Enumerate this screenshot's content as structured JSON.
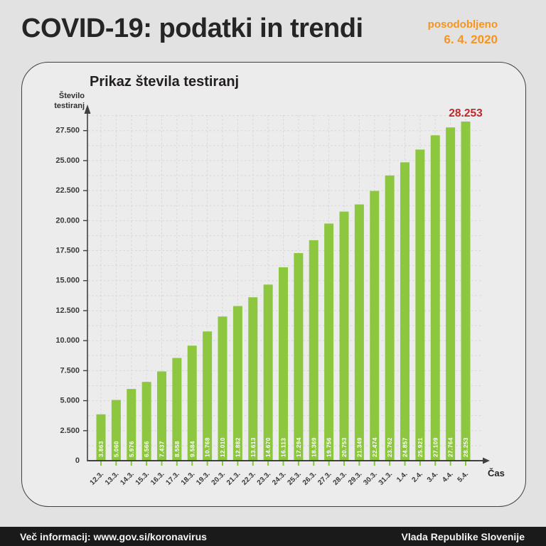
{
  "header": {
    "title": "COVID-19: podatki in trendi",
    "updated_label": "posodobljeno",
    "updated_date": "6. 4. 2020",
    "accent_color": "#f7941d"
  },
  "chart_data": {
    "type": "bar",
    "title": "Prikaz števila testiranj",
    "ylabel_lines": [
      "Število",
      "testiranj"
    ],
    "xlabel": "Čas",
    "categories": [
      "12.3.",
      "13.3.",
      "14.3.",
      "15.3.",
      "16.3.",
      "17.3.",
      "18.3.",
      "19.3.",
      "20.3.",
      "21.3.",
      "22.3.",
      "23.3.",
      "24.3.",
      "25.3.",
      "26.3.",
      "27.3.",
      "28.3.",
      "29.3.",
      "30.3.",
      "31.3.",
      "1.4.",
      "2.4.",
      "3.4.",
      "4.4.",
      "5.4."
    ],
    "values": [
      3863,
      5060,
      5976,
      6566,
      7437,
      8558,
      9584,
      10768,
      12010,
      12882,
      13613,
      14670,
      16113,
      17294,
      18369,
      19756,
      20753,
      21349,
      22474,
      23762,
      24857,
      25921,
      27109,
      27764,
      28253
    ],
    "value_labels": [
      "3.863",
      "5.060",
      "5.976",
      "6.566",
      "7.437",
      "8.558",
      "9.584",
      "10.768",
      "12.010",
      "12.882",
      "13.613",
      "14.670",
      "16.113",
      "17.294",
      "18.369",
      "19.756",
      "20.753",
      "21.349",
      "22.474",
      "23.762",
      "24.857",
      "25.921",
      "27.109",
      "27.764",
      "28.253"
    ],
    "peak_label": "28.253",
    "y_tick_values": [
      0,
      2500,
      5000,
      7500,
      10000,
      12500,
      15000,
      17500,
      20000,
      22500,
      25000,
      27500
    ],
    "y_tick_labels": [
      "0",
      "2.500",
      "5.000",
      "7.500",
      "10.000",
      "12.500",
      "15.000",
      "17.500",
      "20.000",
      "22.500",
      "25.000",
      "27.500"
    ],
    "ylim": [
      0,
      29500
    ],
    "grid": "dashed",
    "legend": "none",
    "colors": {
      "bar": "#8dc63f",
      "bar_label": "#ffffff",
      "peak_label": "#c1272d",
      "axis": "#414042",
      "tick_text": "#3a3a3a",
      "x_tick": "#8dc63f",
      "grid": "#d6d6d6"
    }
  },
  "footer": {
    "left": "Več informacij: www.gov.si/koronavirus",
    "right": "Vlada Republike Slovenije"
  }
}
